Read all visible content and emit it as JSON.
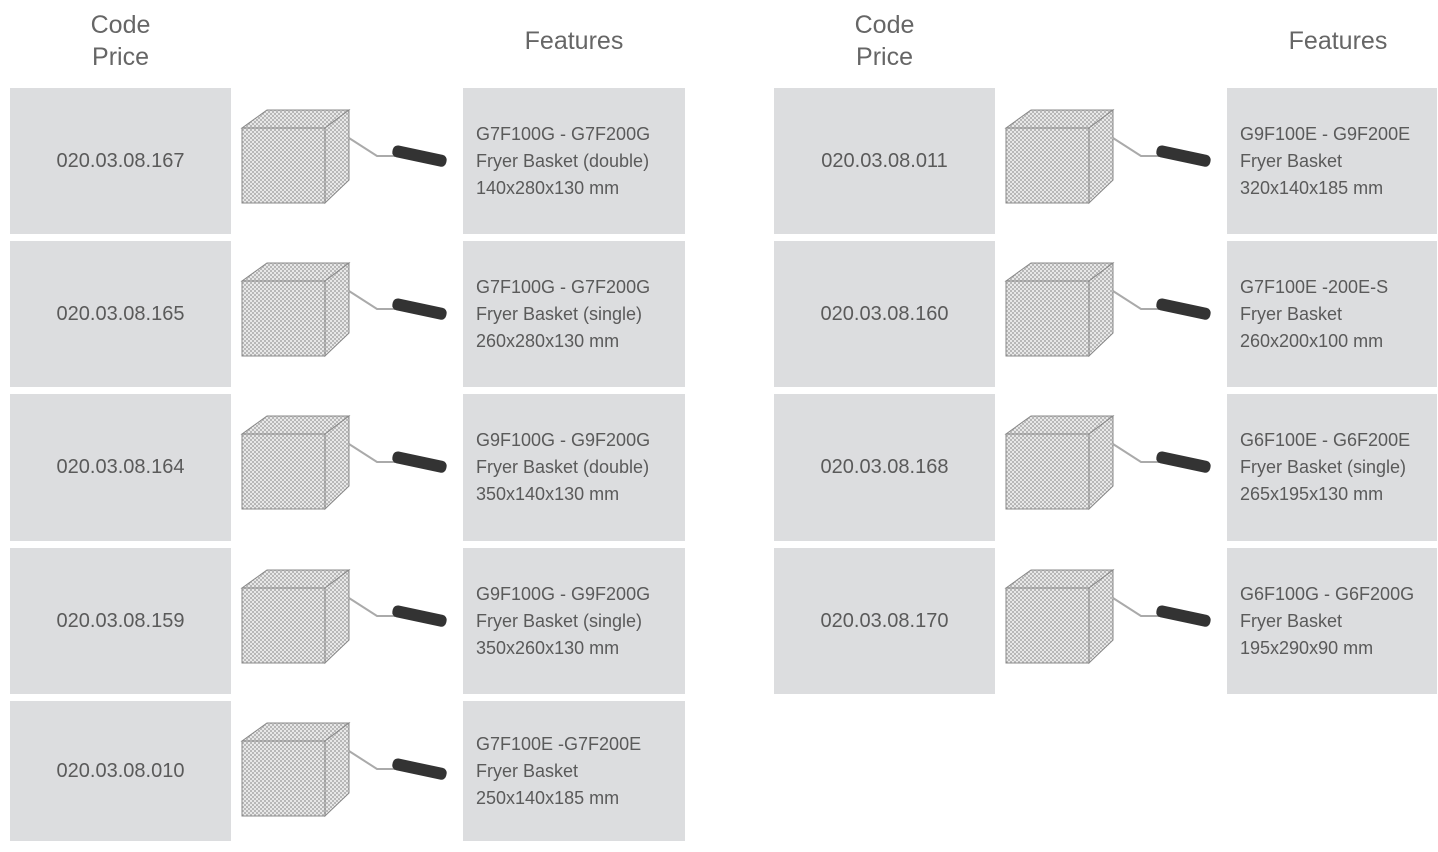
{
  "columns": [
    {
      "header": {
        "code": "Code",
        "price": "Price",
        "features": "Features"
      },
      "rows": [
        {
          "code": "020.03.08.167",
          "features": [
            "G7F100G - G7F200G",
            "Fryer Basket (double)",
            "140x280x130 mm"
          ]
        },
        {
          "code": "020.03.08.165",
          "features": [
            "G7F100G - G7F200G",
            "Fryer Basket (single)",
            "260x280x130 mm"
          ]
        },
        {
          "code": "020.03.08.164",
          "features": [
            "G9F100G - G9F200G",
            "Fryer Basket (double)",
            "350x140x130 mm"
          ]
        },
        {
          "code": "020.03.08.159",
          "features": [
            "G9F100G - G9F200G",
            "Fryer Basket (single)",
            "350x260x130 mm"
          ]
        },
        {
          "code": "020.03.08.010",
          "features": [
            "G7F100E -G7F200E",
            "Fryer Basket",
            "250x140x185 mm"
          ]
        }
      ]
    },
    {
      "header": {
        "code": "Code",
        "price": "Price",
        "features": "Features"
      },
      "rows": [
        {
          "code": "020.03.08.011",
          "features": [
            "G9F100E - G9F200E",
            "Fryer Basket",
            "320x140x185 mm"
          ]
        },
        {
          "code": "020.03.08.160",
          "features": [
            "G7F100E -200E-S",
            "Fryer Basket",
            "260x200x100 mm"
          ]
        },
        {
          "code": "020.03.08.168",
          "features": [
            "G6F100E - G6F200E",
            "Fryer Basket (single)",
            "265x195x130 mm"
          ]
        },
        {
          "code": "020.03.08.170",
          "features": [
            "G6F100G - G6F200G",
            "Fryer Basket",
            "195x290x90 mm"
          ]
        }
      ]
    }
  ]
}
